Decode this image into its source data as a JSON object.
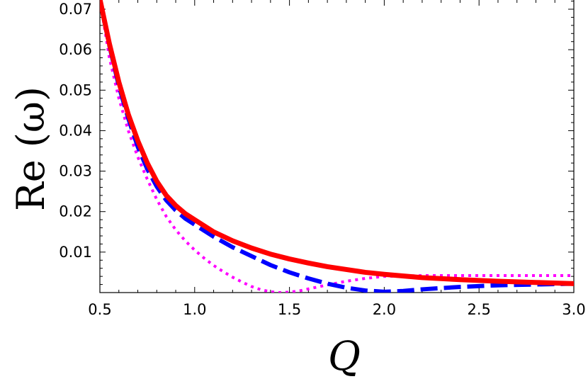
{
  "chart_data": {
    "type": "line",
    "title": "",
    "xlabel": "Q",
    "ylabel": "Re (ω)",
    "xlim": [
      0.5,
      3.0
    ],
    "ylim": [
      0.0,
      0.0725
    ],
    "xticks": [
      0.5,
      1.0,
      1.5,
      2.0,
      2.5,
      3.0
    ],
    "xtick_labels": [
      "0.5",
      "1.0",
      "1.5",
      "2.0",
      "2.5",
      "3.0"
    ],
    "yticks": [
      0.01,
      0.02,
      0.03,
      0.04,
      0.05,
      0.06,
      0.07
    ],
    "ytick_labels": [
      "0.01",
      "0.02",
      "0.03",
      "0.04",
      "0.05",
      "0.06",
      "0.07"
    ],
    "grid": false,
    "legend": "none",
    "series": [
      {
        "color": "#ff0000",
        "style": "solid",
        "x": [
          0.5,
          0.55,
          0.6,
          0.65,
          0.7,
          0.75,
          0.8,
          0.85,
          0.9,
          0.95,
          1.0,
          1.1,
          1.2,
          1.3,
          1.4,
          1.5,
          1.6,
          1.7,
          1.8,
          1.9,
          2.0,
          2.2,
          2.4,
          2.6,
          2.8,
          3.0
        ],
        "y": [
          0.0725,
          0.0615,
          0.052,
          0.044,
          0.0375,
          0.032,
          0.0275,
          0.024,
          0.0215,
          0.0195,
          0.018,
          0.015,
          0.0128,
          0.011,
          0.0095,
          0.0083,
          0.0073,
          0.0064,
          0.0057,
          0.005,
          0.0045,
          0.0037,
          0.0032,
          0.0028,
          0.0025,
          0.0022
        ]
      },
      {
        "color": "#0000ff",
        "style": "dashed",
        "x": [
          0.5,
          0.55,
          0.6,
          0.65,
          0.7,
          0.75,
          0.8,
          0.85,
          0.9,
          0.95,
          1.0,
          1.1,
          1.2,
          1.3,
          1.4,
          1.5,
          1.6,
          1.7,
          1.8,
          1.9,
          2.0,
          2.1,
          2.2,
          2.4,
          2.6,
          2.8,
          3.0
        ],
        "y": [
          0.0725,
          0.061,
          0.051,
          0.043,
          0.036,
          0.0305,
          0.0262,
          0.0228,
          0.0203,
          0.0183,
          0.0168,
          0.0138,
          0.0112,
          0.009,
          0.0068,
          0.005,
          0.0035,
          0.0022,
          0.0012,
          0.0005,
          0.0002,
          0.0004,
          0.0008,
          0.0014,
          0.0018,
          0.002,
          0.0022
        ]
      },
      {
        "color": "#ff00ff",
        "style": "dotted",
        "x": [
          0.5,
          0.55,
          0.6,
          0.65,
          0.7,
          0.75,
          0.8,
          0.85,
          0.9,
          0.95,
          1.0,
          1.05,
          1.1,
          1.15,
          1.2,
          1.25,
          1.3,
          1.35,
          1.4,
          1.45,
          1.5,
          1.55,
          1.6,
          1.7,
          1.8,
          1.9,
          2.0,
          2.2,
          2.4,
          2.6,
          2.8,
          3.0
        ],
        "y": [
          0.0725,
          0.058,
          0.048,
          0.04,
          0.0335,
          0.028,
          0.023,
          0.0188,
          0.0155,
          0.0128,
          0.0105,
          0.0085,
          0.0067,
          0.0052,
          0.0038,
          0.0026,
          0.0015,
          0.0007,
          0.0002,
          0.0,
          0.0001,
          0.0004,
          0.0009,
          0.0019,
          0.0028,
          0.0035,
          0.004,
          0.0042,
          0.0042,
          0.0042,
          0.0042,
          0.0042
        ]
      }
    ]
  }
}
